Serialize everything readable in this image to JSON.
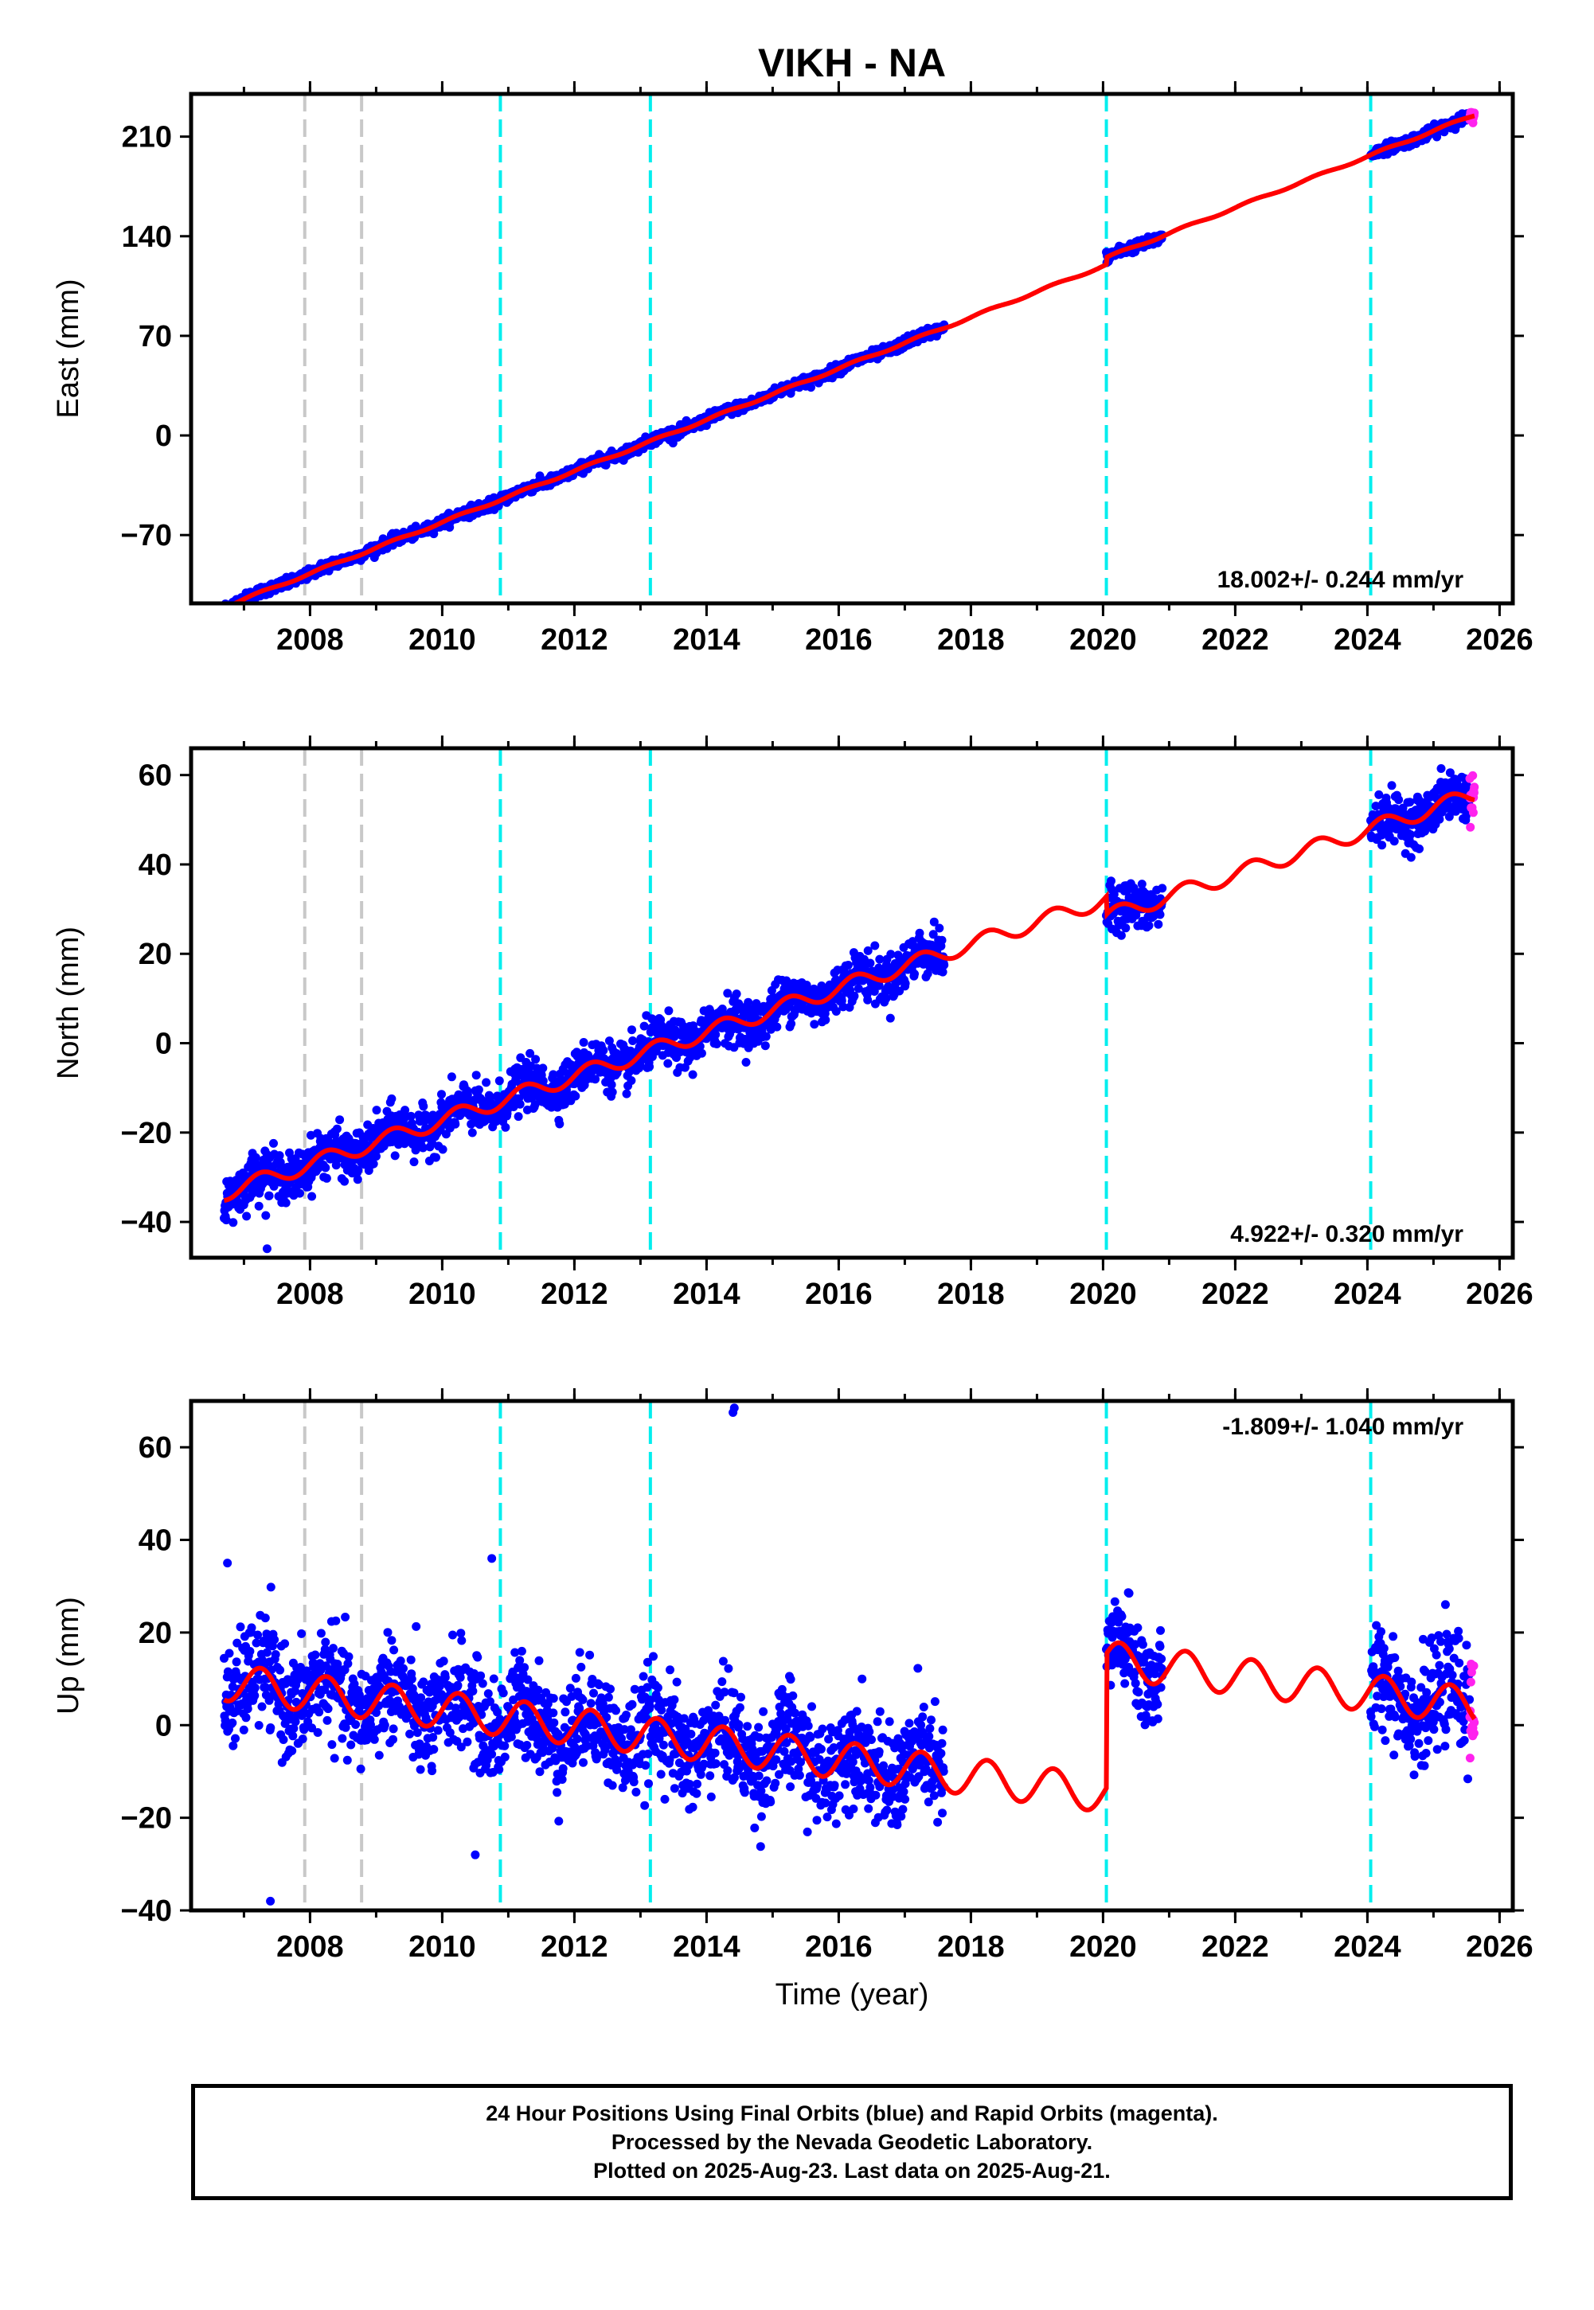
{
  "title": "VIKH - NA",
  "xlabel": "Time (year)",
  "colors": {
    "final_points": "#0000ff",
    "rapid_points": "#ff22ee",
    "model": "#ff0000",
    "gray_line": "#c8c8c8",
    "cyan_line": "#00eeee"
  },
  "event_lines": {
    "gray": [
      2007.92,
      2008.78
    ],
    "cyan": [
      2010.88,
      2013.15,
      2020.05,
      2024.05
    ]
  },
  "chart_data": [
    {
      "type": "scatter",
      "component": "East",
      "ylabel": "East (mm)",
      "xlim": [
        2006.2,
        2026.2
      ],
      "ylim": [
        -118,
        240
      ],
      "yticks": [
        -70,
        0,
        70,
        140,
        210
      ],
      "xticks": [
        2008,
        2010,
        2012,
        2014,
        2016,
        2018,
        2020,
        2022,
        2024,
        2026
      ],
      "rate_label": "18.002+/- 0.244 mm/yr",
      "rate_position": "bottom-right",
      "rate": 18.002,
      "ref_year": 2013.5,
      "ref_value": 2,
      "amp_annual": 0.8,
      "scatter_sd": 1.8,
      "offsets": [
        {
          "year": 2020.05,
          "delta": 5
        }
      ],
      "data_spans": [
        [
          2006.7,
          2017.6
        ],
        [
          2020.05,
          2020.9
        ],
        [
          2024.05,
          2025.55
        ]
      ],
      "rapid_span": [
        2025.55,
        2025.62
      ],
      "model_span": [
        2006.7,
        2025.62
      ],
      "outliers": []
    },
    {
      "type": "scatter",
      "component": "North",
      "ylabel": "North (mm)",
      "xlim": [
        2006.2,
        2026.2
      ],
      "ylim": [
        -48,
        66
      ],
      "yticks": [
        -40,
        -20,
        0,
        20,
        40,
        60
      ],
      "xticks": [
        2008,
        2010,
        2012,
        2014,
        2016,
        2018,
        2020,
        2022,
        2024,
        2026
      ],
      "rate_label": "4.922+/- 0.320 mm/yr",
      "rate_position": "bottom-right",
      "rate": 4.922,
      "ref_year": 2013.5,
      "ref_value": 0,
      "amp_annual": 1.8,
      "scatter_sd": 2.6,
      "offsets": [
        {
          "year": 2020.05,
          "delta": -4
        }
      ],
      "data_spans": [
        [
          2006.7,
          2017.6
        ],
        [
          2020.05,
          2020.9
        ],
        [
          2024.05,
          2025.55
        ]
      ],
      "rapid_span": [
        2025.55,
        2025.62
      ],
      "model_span": [
        2006.7,
        2025.62
      ],
      "outliers": [
        [
          2007.35,
          -46
        ]
      ]
    },
    {
      "type": "scatter",
      "component": "Up",
      "ylabel": "Up (mm)",
      "xlim": [
        2006.2,
        2026.2
      ],
      "ylim": [
        -40,
        70
      ],
      "yticks": [
        -40,
        -20,
        0,
        20,
        40,
        60
      ],
      "xticks": [
        2008,
        2010,
        2012,
        2014,
        2016,
        2018,
        2020,
        2022,
        2024,
        2026
      ],
      "rate_label": "-1.809+/- 1.040 mm/yr",
      "rate_position": "top-right",
      "rate": -1.809,
      "ref_year": 2013.5,
      "ref_value": -3,
      "amp_annual": 4,
      "scatter_sd": 5.5,
      "offsets": [
        {
          "year": 2020.05,
          "delta": 29
        }
      ],
      "data_spans": [
        [
          2006.7,
          2017.6
        ],
        [
          2020.05,
          2020.9
        ],
        [
          2024.05,
          2025.55
        ]
      ],
      "rapid_span": [
        2025.55,
        2025.62
      ],
      "model_span": [
        2006.7,
        2025.62
      ],
      "outliers": [
        [
          2014.4,
          67.5
        ],
        [
          2014.42,
          68.5
        ],
        [
          2007.4,
          -38
        ],
        [
          2010.5,
          -28
        ],
        [
          2006.75,
          35
        ],
        [
          2010.75,
          36
        ]
      ]
    }
  ],
  "caption": {
    "line1": "24 Hour Positions Using Final Orbits (blue) and Rapid Orbits (magenta).",
    "line2": "Processed by the Nevada Geodetic Laboratory.",
    "line3": "Plotted on 2025-Aug-23. Last data on 2025-Aug-21."
  }
}
